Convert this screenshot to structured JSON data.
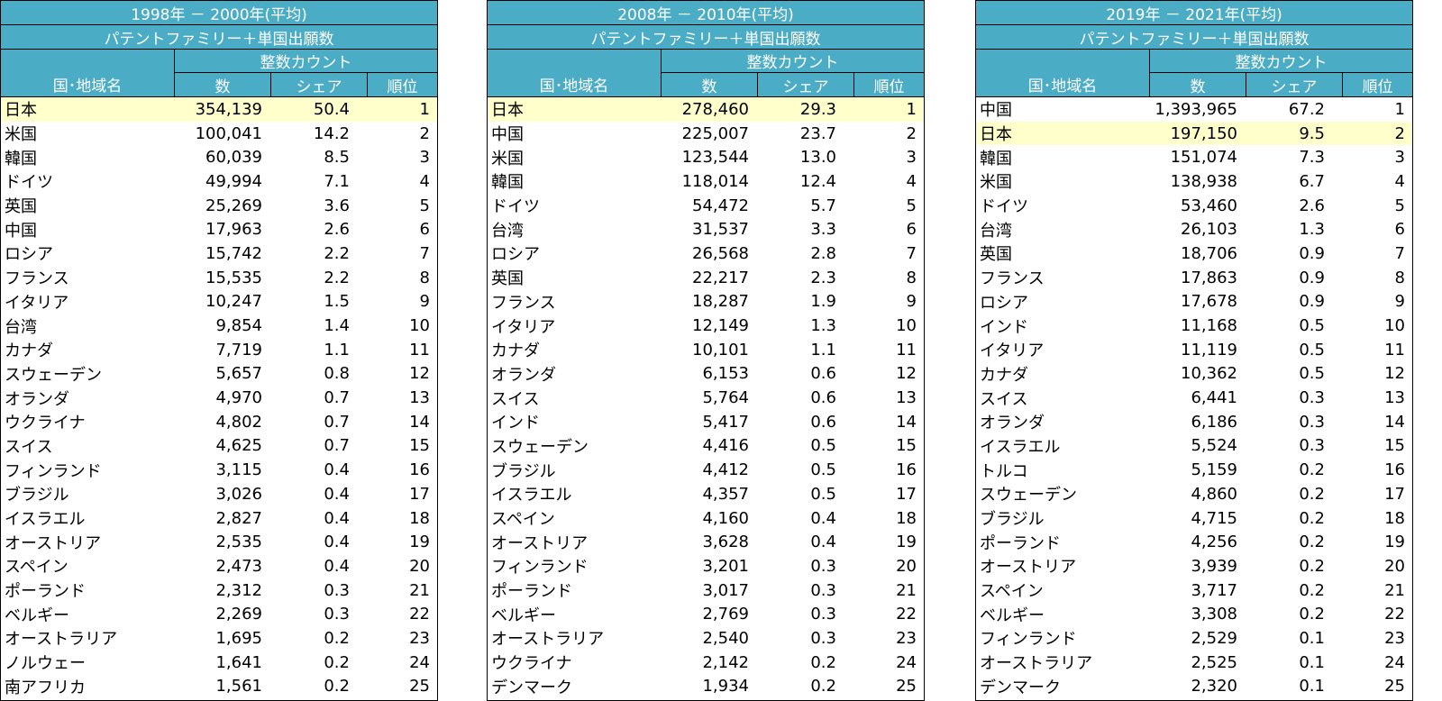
{
  "colors": {
    "header_bg": "#4bacc6",
    "header_text": "#ffffff",
    "highlight_row": "#ffffcc"
  },
  "tables": [
    {
      "period": "1998年 － 2000年(平均)",
      "subtitle": "パテントファミリー＋単国出願数",
      "count_label": "整数カウント",
      "col_name": "国･地域名",
      "col_num": "数",
      "col_share": "シェア",
      "col_rank": "順位",
      "rows": [
        {
          "name": "日本",
          "num": "354,139",
          "share": "50.4",
          "rank": "1"
        },
        {
          "name": "米国",
          "num": "100,041",
          "share": "14.2",
          "rank": "2"
        },
        {
          "name": "韓国",
          "num": "60,039",
          "share": "8.5",
          "rank": "3"
        },
        {
          "name": "ドイツ",
          "num": "49,994",
          "share": "7.1",
          "rank": "4"
        },
        {
          "name": "英国",
          "num": "25,269",
          "share": "3.6",
          "rank": "5"
        },
        {
          "name": "中国",
          "num": "17,963",
          "share": "2.6",
          "rank": "6"
        },
        {
          "name": "ロシア",
          "num": "15,742",
          "share": "2.2",
          "rank": "7"
        },
        {
          "name": "フランス",
          "num": "15,535",
          "share": "2.2",
          "rank": "8"
        },
        {
          "name": "イタリア",
          "num": "10,247",
          "share": "1.5",
          "rank": "9"
        },
        {
          "name": "台湾",
          "num": "9,854",
          "share": "1.4",
          "rank": "10"
        },
        {
          "name": "カナダ",
          "num": "7,719",
          "share": "1.1",
          "rank": "11"
        },
        {
          "name": "スウェーデン",
          "num": "5,657",
          "share": "0.8",
          "rank": "12"
        },
        {
          "name": "オランダ",
          "num": "4,970",
          "share": "0.7",
          "rank": "13"
        },
        {
          "name": "ウクライナ",
          "num": "4,802",
          "share": "0.7",
          "rank": "14"
        },
        {
          "name": "スイス",
          "num": "4,625",
          "share": "0.7",
          "rank": "15"
        },
        {
          "name": "フィンランド",
          "num": "3,115",
          "share": "0.4",
          "rank": "16"
        },
        {
          "name": "ブラジル",
          "num": "3,026",
          "share": "0.4",
          "rank": "17"
        },
        {
          "name": "イスラエル",
          "num": "2,827",
          "share": "0.4",
          "rank": "18"
        },
        {
          "name": "オーストリア",
          "num": "2,535",
          "share": "0.4",
          "rank": "19"
        },
        {
          "name": "スペイン",
          "num": "2,473",
          "share": "0.4",
          "rank": "20"
        },
        {
          "name": "ポーランド",
          "num": "2,312",
          "share": "0.3",
          "rank": "21"
        },
        {
          "name": "ベルギー",
          "num": "2,269",
          "share": "0.3",
          "rank": "22"
        },
        {
          "name": "オーストラリア",
          "num": "1,695",
          "share": "0.2",
          "rank": "23"
        },
        {
          "name": "ノルウェー",
          "num": "1,641",
          "share": "0.2",
          "rank": "24"
        },
        {
          "name": "南アフリカ",
          "num": "1,561",
          "share": "0.2",
          "rank": "25"
        }
      ]
    },
    {
      "period": "2008年 － 2010年(平均)",
      "subtitle": "パテントファミリー＋単国出願数",
      "count_label": "整数カウント",
      "col_name": "国･地域名",
      "col_num": "数",
      "col_share": "シェア",
      "col_rank": "順位",
      "rows": [
        {
          "name": "日本",
          "num": "278,460",
          "share": "29.3",
          "rank": "1"
        },
        {
          "name": "中国",
          "num": "225,007",
          "share": "23.7",
          "rank": "2"
        },
        {
          "name": "米国",
          "num": "123,544",
          "share": "13.0",
          "rank": "3"
        },
        {
          "name": "韓国",
          "num": "118,014",
          "share": "12.4",
          "rank": "4"
        },
        {
          "name": "ドイツ",
          "num": "54,472",
          "share": "5.7",
          "rank": "5"
        },
        {
          "name": "台湾",
          "num": "31,537",
          "share": "3.3",
          "rank": "6"
        },
        {
          "name": "ロシア",
          "num": "26,568",
          "share": "2.8",
          "rank": "7"
        },
        {
          "name": "英国",
          "num": "22,217",
          "share": "2.3",
          "rank": "8"
        },
        {
          "name": "フランス",
          "num": "18,287",
          "share": "1.9",
          "rank": "9"
        },
        {
          "name": "イタリア",
          "num": "12,149",
          "share": "1.3",
          "rank": "10"
        },
        {
          "name": "カナダ",
          "num": "10,101",
          "share": "1.1",
          "rank": "11"
        },
        {
          "name": "オランダ",
          "num": "6,153",
          "share": "0.6",
          "rank": "12"
        },
        {
          "name": "スイス",
          "num": "5,764",
          "share": "0.6",
          "rank": "13"
        },
        {
          "name": "インド",
          "num": "5,417",
          "share": "0.6",
          "rank": "14"
        },
        {
          "name": "スウェーデン",
          "num": "4,416",
          "share": "0.5",
          "rank": "15"
        },
        {
          "name": "ブラジル",
          "num": "4,412",
          "share": "0.5",
          "rank": "16"
        },
        {
          "name": "イスラエル",
          "num": "4,357",
          "share": "0.5",
          "rank": "17"
        },
        {
          "name": "スペイン",
          "num": "4,160",
          "share": "0.4",
          "rank": "18"
        },
        {
          "name": "オーストリア",
          "num": "3,628",
          "share": "0.4",
          "rank": "19"
        },
        {
          "name": "フィンランド",
          "num": "3,201",
          "share": "0.3",
          "rank": "20"
        },
        {
          "name": "ポーランド",
          "num": "3,017",
          "share": "0.3",
          "rank": "21"
        },
        {
          "name": "ベルギー",
          "num": "2,769",
          "share": "0.3",
          "rank": "22"
        },
        {
          "name": "オーストラリア",
          "num": "2,540",
          "share": "0.3",
          "rank": "23"
        },
        {
          "name": "ウクライナ",
          "num": "2,142",
          "share": "0.2",
          "rank": "24"
        },
        {
          "name": "デンマーク",
          "num": "1,934",
          "share": "0.2",
          "rank": "25"
        }
      ]
    },
    {
      "period": "2019年 － 2021年(平均)",
      "subtitle": "パテントファミリー＋単国出願数",
      "count_label": "整数カウント",
      "col_name": "国･地域名",
      "col_num": "数",
      "col_share": "シェア",
      "col_rank": "順位",
      "rows": [
        {
          "name": "中国",
          "num": "1,393,965",
          "share": "67.2",
          "rank": "1"
        },
        {
          "name": "日本",
          "num": "197,150",
          "share": "9.5",
          "rank": "2"
        },
        {
          "name": "韓国",
          "num": "151,074",
          "share": "7.3",
          "rank": "3"
        },
        {
          "name": "米国",
          "num": "138,938",
          "share": "6.7",
          "rank": "4"
        },
        {
          "name": "ドイツ",
          "num": "53,460",
          "share": "2.6",
          "rank": "5"
        },
        {
          "name": "台湾",
          "num": "26,103",
          "share": "1.3",
          "rank": "6"
        },
        {
          "name": "英国",
          "num": "18,706",
          "share": "0.9",
          "rank": "7"
        },
        {
          "name": "フランス",
          "num": "17,863",
          "share": "0.9",
          "rank": "8"
        },
        {
          "name": "ロシア",
          "num": "17,678",
          "share": "0.9",
          "rank": "9"
        },
        {
          "name": "インド",
          "num": "11,168",
          "share": "0.5",
          "rank": "10"
        },
        {
          "name": "イタリア",
          "num": "11,119",
          "share": "0.5",
          "rank": "11"
        },
        {
          "name": "カナダ",
          "num": "10,362",
          "share": "0.5",
          "rank": "12"
        },
        {
          "name": "スイス",
          "num": "6,441",
          "share": "0.3",
          "rank": "13"
        },
        {
          "name": "オランダ",
          "num": "6,186",
          "share": "0.3",
          "rank": "14"
        },
        {
          "name": "イスラエル",
          "num": "5,524",
          "share": "0.3",
          "rank": "15"
        },
        {
          "name": "トルコ",
          "num": "5,159",
          "share": "0.2",
          "rank": "16"
        },
        {
          "name": "スウェーデン",
          "num": "4,860",
          "share": "0.2",
          "rank": "17"
        },
        {
          "name": "ブラジル",
          "num": "4,715",
          "share": "0.2",
          "rank": "18"
        },
        {
          "name": "ポーランド",
          "num": "4,256",
          "share": "0.2",
          "rank": "19"
        },
        {
          "name": "オーストリア",
          "num": "3,939",
          "share": "0.2",
          "rank": "20"
        },
        {
          "name": "スペイン",
          "num": "3,717",
          "share": "0.2",
          "rank": "21"
        },
        {
          "name": "ベルギー",
          "num": "3,308",
          "share": "0.2",
          "rank": "22"
        },
        {
          "name": "フィンランド",
          "num": "2,529",
          "share": "0.1",
          "rank": "23"
        },
        {
          "name": "オーストラリア",
          "num": "2,525",
          "share": "0.1",
          "rank": "24"
        },
        {
          "name": "デンマーク",
          "num": "2,320",
          "share": "0.1",
          "rank": "25"
        }
      ]
    }
  ]
}
